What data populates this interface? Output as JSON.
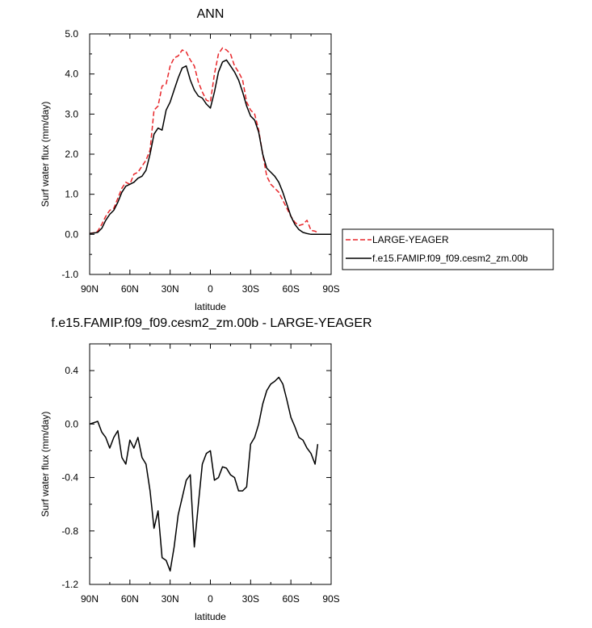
{
  "chart_data": [
    {
      "type": "line",
      "title": "ANN",
      "xlabel": "latitude",
      "ylabel": "Surf water flux (mm/day)",
      "ylim": [
        -1.0,
        5.0
      ],
      "xlim": [
        90,
        -90
      ],
      "x_ticks": [
        {
          "value": 90,
          "label": "90N"
        },
        {
          "value": 60,
          "label": "60N"
        },
        {
          "value": 30,
          "label": "30N"
        },
        {
          "value": 0,
          "label": "0"
        },
        {
          "value": -30,
          "label": "30S"
        },
        {
          "value": -60,
          "label": "60S"
        },
        {
          "value": -90,
          "label": "90S"
        }
      ],
      "y_ticks": [
        {
          "value": 5.0,
          "label": "5.0"
        },
        {
          "value": 4.0,
          "label": "4.0"
        },
        {
          "value": 3.0,
          "label": "3.0"
        },
        {
          "value": 2.0,
          "label": "2.0"
        },
        {
          "value": 1.0,
          "label": "1.0"
        },
        {
          "value": 0.0,
          "label": "0.0"
        },
        {
          "value": -1.0,
          "label": "-1.0"
        }
      ],
      "legend_position": "right",
      "series": [
        {
          "name": "LARGE-YEAGER",
          "color": "#e8262a",
          "style": "dashed",
          "x": [
            90,
            87,
            84,
            81,
            78,
            75,
            72,
            69,
            66,
            63,
            60,
            57,
            54,
            51,
            48,
            45,
            42,
            39,
            36,
            33,
            30,
            27,
            24,
            21,
            18,
            15,
            12,
            9,
            6,
            3,
            0,
            -3,
            -6,
            -9,
            -12,
            -15,
            -18,
            -21,
            -24,
            -27,
            -30,
            -33,
            -36,
            -39,
            -42,
            -45,
            -48,
            -51,
            -54,
            -57,
            -60,
            -63,
            -66,
            -69,
            -72,
            -75,
            -78,
            -80
          ],
          "values": [
            0.02,
            0.04,
            0.08,
            0.25,
            0.45,
            0.6,
            0.65,
            0.9,
            1.15,
            1.3,
            1.25,
            1.5,
            1.55,
            1.7,
            1.85,
            2.1,
            3.1,
            3.2,
            3.7,
            3.75,
            4.2,
            4.4,
            4.45,
            4.6,
            4.55,
            4.35,
            4.2,
            3.8,
            3.55,
            3.35,
            3.3,
            4.0,
            4.5,
            4.65,
            4.6,
            4.5,
            4.2,
            4.05,
            3.85,
            3.3,
            3.1,
            3.0,
            2.6,
            2.0,
            1.45,
            1.25,
            1.15,
            1.05,
            0.85,
            0.65,
            0.45,
            0.3,
            0.22,
            0.25,
            0.35,
            0.1,
            0.08,
            0.05
          ]
        },
        {
          "name": "f.e15.FAMIP.f09_f09.cesm2_zm.00b",
          "color": "#000000",
          "style": "solid",
          "x": [
            90,
            87,
            84,
            81,
            78,
            75,
            72,
            69,
            66,
            63,
            60,
            57,
            54,
            51,
            48,
            45,
            42,
            39,
            36,
            33,
            30,
            27,
            24,
            21,
            18,
            15,
            12,
            9,
            6,
            3,
            0,
            -3,
            -6,
            -9,
            -12,
            -15,
            -18,
            -21,
            -24,
            -27,
            -30,
            -33,
            -36,
            -39,
            -42,
            -45,
            -48,
            -51,
            -54,
            -57,
            -60,
            -63,
            -66,
            -69,
            -72,
            -75,
            -78,
            -81,
            -84,
            -87,
            -90
          ],
          "values": [
            0.02,
            0.03,
            0.05,
            0.15,
            0.35,
            0.5,
            0.6,
            0.8,
            1.05,
            1.2,
            1.25,
            1.3,
            1.4,
            1.45,
            1.6,
            2.0,
            2.5,
            2.65,
            2.6,
            3.1,
            3.3,
            3.6,
            3.9,
            4.15,
            4.2,
            3.85,
            3.6,
            3.45,
            3.4,
            3.25,
            3.15,
            3.55,
            4.05,
            4.3,
            4.35,
            4.2,
            4.05,
            3.85,
            3.55,
            3.2,
            2.95,
            2.85,
            2.55,
            2.0,
            1.65,
            1.55,
            1.45,
            1.3,
            1.05,
            0.75,
            0.45,
            0.25,
            0.12,
            0.05,
            0.02,
            0.0,
            0.0,
            0.0,
            0.0,
            0.0,
            0.0
          ]
        }
      ]
    },
    {
      "type": "line",
      "title": "f.e15.FAMIP.f09_f09.cesm2_zm.00b - LARGE-YEAGER",
      "xlabel": "latitude",
      "ylabel": "Surf water flux (mm/day)",
      "ylim": [
        -1.2,
        0.6
      ],
      "xlim": [
        90,
        -90
      ],
      "x_ticks": [
        {
          "value": 90,
          "label": "90N"
        },
        {
          "value": 60,
          "label": "60N"
        },
        {
          "value": 30,
          "label": "30N"
        },
        {
          "value": 0,
          "label": "0"
        },
        {
          "value": -30,
          "label": "30S"
        },
        {
          "value": -60,
          "label": "60S"
        },
        {
          "value": -90,
          "label": "90S"
        }
      ],
      "y_ticks": [
        {
          "value": 0.4,
          "label": "0.4"
        },
        {
          "value": 0.0,
          "label": "0.0"
        },
        {
          "value": -0.4,
          "label": "-0.4"
        },
        {
          "value": -0.8,
          "label": "-0.8"
        },
        {
          "value": -1.2,
          "label": "-1.2"
        }
      ],
      "series": [
        {
          "color": "#000000",
          "style": "solid",
          "x": [
            90,
            87,
            84,
            81,
            78,
            75,
            72,
            69,
            66,
            63,
            60,
            57,
            54,
            51,
            48,
            45,
            42,
            39,
            36,
            33,
            30,
            27,
            24,
            21,
            18,
            15,
            12,
            9,
            6,
            3,
            0,
            -3,
            -6,
            -9,
            -12,
            -15,
            -18,
            -21,
            -24,
            -27,
            -30,
            -33,
            -36,
            -39,
            -42,
            -45,
            -48,
            -51,
            -54,
            -57,
            -60,
            -63,
            -66,
            -69,
            -72,
            -75,
            -78,
            -80
          ],
          "values": [
            0.0,
            0.01,
            0.02,
            -0.06,
            -0.1,
            -0.18,
            -0.1,
            -0.05,
            -0.25,
            -0.3,
            -0.12,
            -0.18,
            -0.1,
            -0.25,
            -0.3,
            -0.5,
            -0.78,
            -0.65,
            -1.0,
            -1.02,
            -1.1,
            -0.92,
            -0.68,
            -0.55,
            -0.42,
            -0.38,
            -0.92,
            -0.6,
            -0.3,
            -0.22,
            -0.2,
            -0.42,
            -0.4,
            -0.32,
            -0.33,
            -0.38,
            -0.4,
            -0.5,
            -0.5,
            -0.47,
            -0.15,
            -0.1,
            0.0,
            0.15,
            0.25,
            0.3,
            0.32,
            0.35,
            0.3,
            0.18,
            0.05,
            -0.02,
            -0.1,
            -0.12,
            -0.18,
            -0.22,
            -0.3,
            -0.15
          ]
        }
      ]
    }
  ]
}
